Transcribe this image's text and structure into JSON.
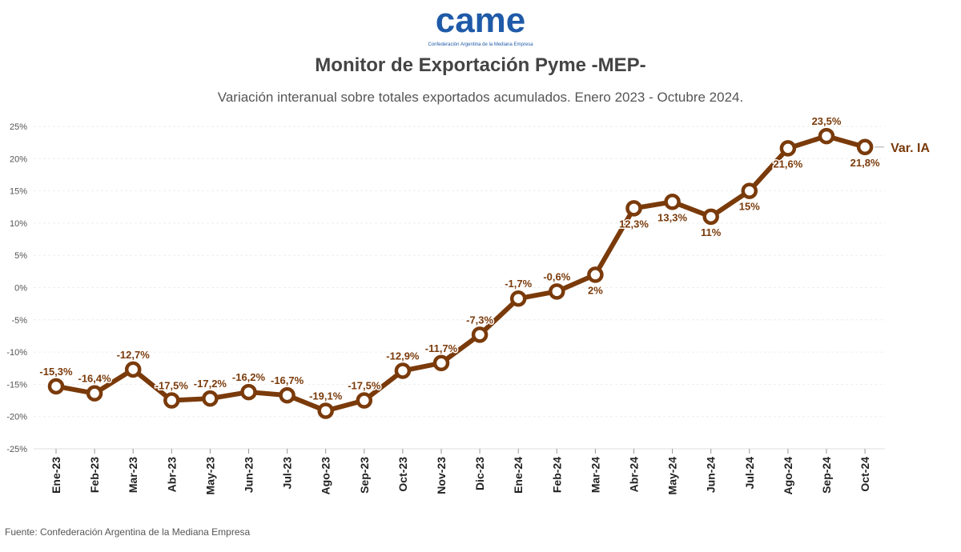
{
  "logo": {
    "text": "came",
    "tagline": "Confederación Argentina de la Mediana Empresa",
    "color": "#1f5aa8"
  },
  "title": "Monitor de Exportación Pyme -MEP-",
  "subtitle": "Variación interanual sobre totales exportados acumulados. Enero 2023 - Octubre 2024.",
  "source": "Fuente: Confederación Argentina de la Mediana Empresa",
  "chart_data": {
    "type": "line",
    "categories": [
      "Ene-23",
      "Feb-23",
      "Mar-23",
      "Abr-23",
      "May-23",
      "Jun-23",
      "Jul-23",
      "Ago-23",
      "Sep-23",
      "Oct-23",
      "Nov-23",
      "Dic-23",
      "Ene-24",
      "Feb-24",
      "Mar-24",
      "Abr-24",
      "May-24",
      "Jun-24",
      "Jul-24",
      "Ago-24",
      "Sep-24",
      "Oct-24"
    ],
    "series": [
      {
        "name": "Var. IA",
        "color": "#7a3a0a",
        "values": [
          -15.3,
          -16.4,
          -12.7,
          -17.5,
          -17.2,
          -16.2,
          -16.7,
          -19.1,
          -17.5,
          -12.9,
          -11.7,
          -7.3,
          -1.7,
          -0.6,
          2,
          12.3,
          13.3,
          11,
          15,
          21.6,
          23.5,
          21.8
        ],
        "labels": [
          "-15,3%",
          "-16,4%",
          "-12,7%",
          "-17,5%",
          "-17,2%",
          "-16,2%",
          "-16,7%",
          "-19,1%",
          "-17,5%",
          "-12,9%",
          "-11,7%",
          "-7,3%",
          "-1,7%",
          "-0,6%",
          "2%",
          "12,3%",
          "13,3%",
          "11%",
          "15%",
          "21,6%",
          "23,5%",
          "21,8%"
        ]
      }
    ],
    "yticks": [
      "25%",
      "20%",
      "15%",
      "10%",
      "5%",
      "0%",
      "-5%",
      "-10%",
      "-15%",
      "-20%",
      "-25%"
    ],
    "ylim": [
      -25,
      25
    ],
    "grid": true,
    "legend": "right end of line"
  }
}
